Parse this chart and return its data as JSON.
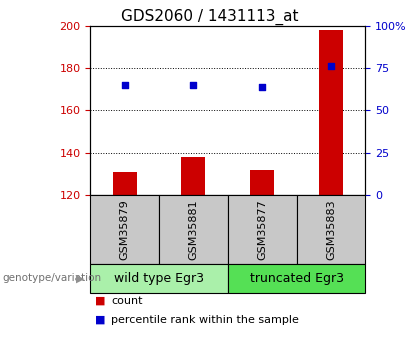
{
  "title": "GDS2060 / 1431113_at",
  "samples": [
    "GSM35879",
    "GSM35881",
    "GSM35877",
    "GSM35883"
  ],
  "bar_values": [
    131,
    138,
    132,
    198
  ],
  "dot_values": [
    172,
    172,
    171,
    181
  ],
  "ylim_left": [
    120,
    200
  ],
  "ylim_right": [
    0,
    100
  ],
  "yticks_left": [
    120,
    140,
    160,
    180,
    200
  ],
  "yticks_right": [
    0,
    25,
    50,
    75,
    100
  ],
  "yticklabels_right": [
    "0",
    "25",
    "50",
    "75",
    "100%"
  ],
  "bar_color": "#cc0000",
  "dot_color": "#0000cc",
  "groups": [
    {
      "label": "wild type Egr3",
      "indices": [
        0,
        1
      ],
      "color": "#aaf0aa"
    },
    {
      "label": "truncated Egr3",
      "indices": [
        2,
        3
      ],
      "color": "#55e055"
    }
  ],
  "group_label_prefix": "genotype/variation",
  "legend_items": [
    {
      "label": "count",
      "color": "#cc0000"
    },
    {
      "label": "percentile rank within the sample",
      "color": "#0000cc"
    }
  ],
  "title_fontsize": 11,
  "tick_fontsize": 8,
  "bar_width": 0.35,
  "box_gray": "#c8c8c8",
  "sample_fontsize": 8,
  "group_fontsize": 9,
  "legend_fontsize": 8
}
